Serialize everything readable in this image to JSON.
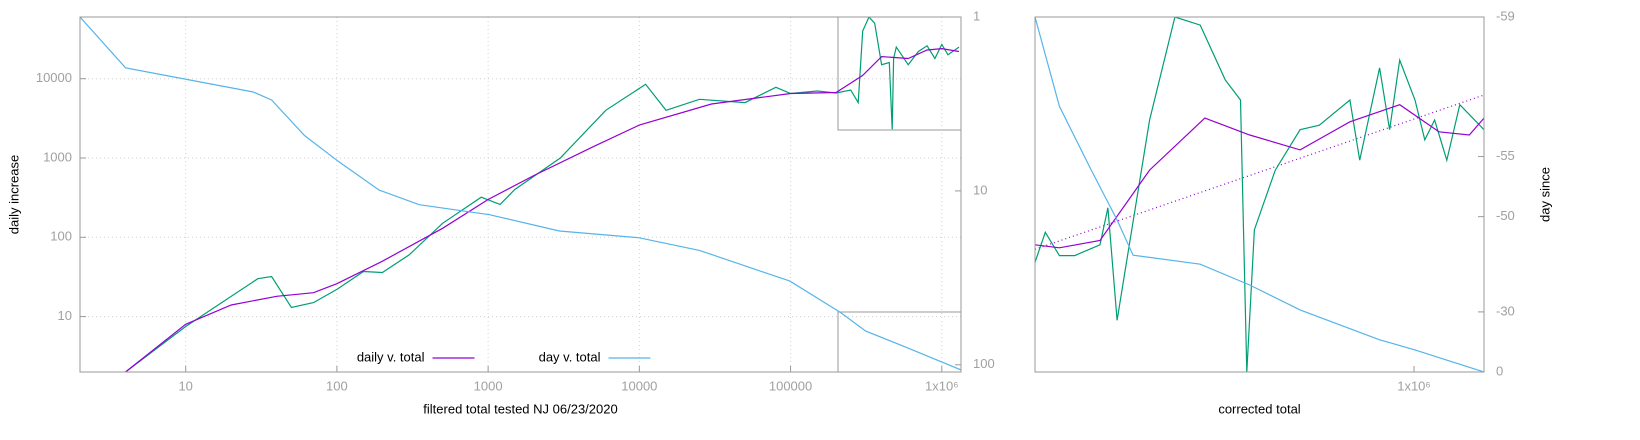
{
  "chart_data": [
    {
      "type": "line",
      "xlabel": "filtered total tested NJ 06/23/2020",
      "ylabel": "daily increase",
      "xlog": true,
      "ylog": true,
      "y2log": true,
      "grid": true,
      "legend": "bottom center",
      "xlim": [
        2,
        1340000
      ],
      "ylim": [
        2,
        60000
      ],
      "y2lim": [
        110,
        1
      ],
      "xticks": [
        10,
        100,
        1000,
        10000,
        100000,
        {
          "value": 1000000,
          "label": "1x10⁶"
        }
      ],
      "yticks": [
        10,
        100,
        1000,
        10000
      ],
      "y2ticks": [
        1,
        10,
        100
      ],
      "series": [
        {
          "color": "#009e73",
          "x": [
            4,
            10,
            30,
            37,
            50,
            70,
            100,
            150,
            200,
            300,
            500,
            900,
            1200,
            1500,
            3000,
            6000,
            11000,
            15000,
            25000,
            50000,
            80000,
            100000,
            150000,
            200000,
            250000,
            280000,
            300000,
            330000,
            360000,
            400000,
            450000,
            470000,
            480000,
            500000,
            600000,
            700000,
            800000,
            900000,
            1000000,
            1100000,
            1300000
          ],
          "values": [
            2,
            7.5,
            30,
            32,
            13,
            15,
            22,
            37,
            36,
            60,
            150,
            320,
            260,
            400,
            1000,
            4000,
            8500,
            4000,
            5500,
            5000,
            7800,
            6500,
            7000,
            6600,
            7200,
            5000,
            40000,
            60000,
            50000,
            15000,
            16000,
            2300,
            18000,
            25000,
            15000,
            22000,
            26000,
            18000,
            27000,
            20000,
            25000
          ]
        },
        {
          "name": "daily v. total",
          "color": "#9400d3",
          "x": [
            4,
            10,
            20,
            40,
            70,
            100,
            200,
            500,
            1000,
            2000,
            5000,
            10000,
            30000,
            100000,
            200000,
            300000,
            400000,
            600000,
            800000,
            1000000,
            1300000
          ],
          "values": [
            2,
            8,
            14,
            18,
            20,
            26,
            50,
            130,
            300,
            600,
            1400,
            2600,
            4800,
            6500,
            6700,
            11000,
            19000,
            18000,
            23000,
            24000,
            22000
          ]
        },
        {
          "name": "day v. total",
          "color": "#56b4e9",
          "axis": "y2",
          "x": [
            2,
            4,
            28,
            37,
            61,
            103,
            190,
            350,
            1020,
            2960,
            10000,
            25000,
            99000,
            214000,
            314000,
            535000,
            1340000
          ],
          "values": [
            1,
            1.96,
            2.7,
            3,
            4.8,
            6.8,
            9.9,
            12,
            13.7,
            17,
            18.6,
            22,
            33,
            50,
            64,
            77,
            107
          ]
        }
      ]
    },
    {
      "type": "line",
      "xlabel": "corrected total",
      "y2label": "day since",
      "xlog": true,
      "ylog": true,
      "y2log": true,
      "grid": false,
      "xlim": [
        205000,
        1340000
      ],
      "ylim": [
        2300,
        60000
      ],
      "y2lim": [
        0,
        -59
      ],
      "xticks": [
        {
          "value": 1000000,
          "label": "1x10⁶"
        }
      ],
      "y2ticks": [
        -59,
        -55,
        -50,
        -30,
        0
      ],
      "series": [
        {
          "color": "#9400d3",
          "dash": true,
          "x": [
            205000,
            1340000
          ],
          "values": [
            7100,
            29300
          ]
        },
        {
          "color": "#009e73",
          "x": [
            205000,
            214000,
            227000,
            242000,
            269000,
            278000,
            289000,
            299000,
            331000,
            368000,
            409000,
            454000,
            484000,
            497000,
            513000,
            560000,
            621000,
            673000,
            765000,
            797000,
            866000,
            903000,
            942000,
            1004000,
            1046000,
            1090000,
            1147000,
            1211000,
            1340000
          ],
          "values": [
            6300,
            8300,
            6700,
            6700,
            7400,
            10400,
            3700,
            5900,
            23300,
            60000,
            55700,
            33700,
            28000,
            2300,
            8500,
            14700,
            21300,
            22200,
            28000,
            16100,
            37600,
            21300,
            40400,
            28000,
            19400,
            23300,
            16100,
            26800,
            21300
          ]
        },
        {
          "color": "#9400d3",
          "x": [
            205000,
            227000,
            269000,
            331000,
            417000,
            503000,
            621000,
            765000,
            942000,
            1110000,
            1260000,
            1340000
          ],
          "values": [
            7400,
            7200,
            7700,
            14700,
            23700,
            20300,
            17700,
            22900,
            26800,
            20900,
            20300,
            23700
          ]
        },
        {
          "color": "#56b4e9",
          "axis": "y2",
          "x": [
            205000,
            227000,
            259000,
            289000,
            309000,
            409000,
            503000,
            621000,
            866000,
            1004000,
            1340000
          ],
          "values": [
            -59,
            -57.2,
            -54.2,
            -49.6,
            -44.4,
            -42.7,
            -38,
            -30.7,
            -18.6,
            -13.5,
            0
          ]
        }
      ]
    }
  ]
}
